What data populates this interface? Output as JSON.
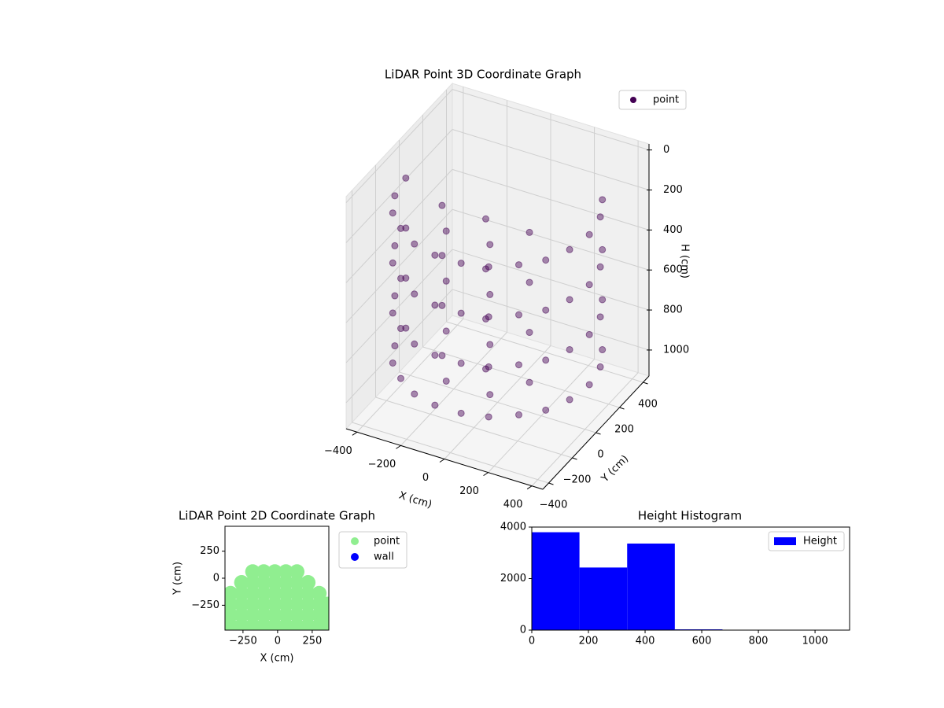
{
  "chart_data": [
    {
      "type": "scatter3d",
      "title": "LiDAR Point 3D Coordinate Graph",
      "x_label": "X (cm)",
      "y_label": "Y (cm)",
      "z_label": "H (cm)",
      "xlim": [
        -450,
        450
      ],
      "ylim": [
        -450,
        450
      ],
      "zlim": [
        1130,
        -30
      ],
      "xticks": [
        {
          "value": -400,
          "label": "−400"
        },
        {
          "value": -200,
          "label": "−200"
        },
        0,
        200,
        400
      ],
      "yticks": [
        {
          "value": -400,
          "label": "−400"
        },
        {
          "value": -200,
          "label": "−200"
        },
        0,
        200,
        400
      ],
      "zticks": [
        0,
        200,
        400,
        600,
        800,
        1000
      ],
      "grid": true,
      "legend": "upper right",
      "series": [
        {
          "name": "point",
          "color": "#440154",
          "x": [
            -420,
            -420,
            -420,
            -420,
            -400,
            -400,
            -400,
            -400,
            -350,
            -350,
            -350,
            -350,
            -270,
            -270,
            -270,
            -270,
            -170,
            -170,
            -170,
            -170,
            -60,
            -60,
            -60,
            -60,
            60,
            60,
            60,
            60,
            170,
            170,
            170,
            170,
            270,
            270,
            270,
            270,
            350,
            350,
            350,
            350,
            400,
            400,
            400,
            400,
            420,
            420,
            420,
            420,
            400,
            400,
            400,
            400,
            350,
            350,
            350,
            350,
            -200,
            -200,
            -200,
            -200,
            0,
            0,
            0,
            0,
            200,
            200,
            200,
            200,
            -100,
            -100,
            -100,
            -100,
            100,
            100,
            100,
            100
          ],
          "y": [
            0,
            0,
            0,
            0,
            -130,
            -130,
            -130,
            -130,
            -240,
            -240,
            -240,
            -240,
            -320,
            -320,
            -320,
            -320,
            -390,
            -390,
            -390,
            -390,
            -420,
            -420,
            -420,
            -420,
            -420,
            -420,
            -420,
            -420,
            -390,
            -390,
            -390,
            -390,
            -320,
            -320,
            -320,
            -320,
            -240,
            -240,
            -240,
            -240,
            -130,
            -130,
            -130,
            -130,
            0,
            0,
            0,
            0,
            130,
            130,
            130,
            130,
            240,
            240,
            240,
            240,
            -100,
            -100,
            -100,
            -100,
            -100,
            -100,
            -100,
            -100,
            -100,
            -100,
            -100,
            -100,
            -250,
            -250,
            -250,
            -250,
            -250,
            -250,
            -250,
            -250
          ],
          "z": [
            150,
            400,
            650,
            900,
            150,
            400,
            650,
            900,
            150,
            400,
            650,
            900,
            150,
            400,
            650,
            900,
            150,
            400,
            650,
            900,
            150,
            400,
            650,
            900,
            150,
            400,
            650,
            900,
            150,
            400,
            650,
            900,
            150,
            400,
            650,
            900,
            150,
            400,
            650,
            900,
            150,
            400,
            650,
            900,
            150,
            400,
            650,
            900,
            150,
            400,
            650,
            900,
            150,
            400,
            650,
            900,
            150,
            400,
            650,
            900,
            150,
            400,
            650,
            900,
            150,
            400,
            650,
            900,
            150,
            400,
            650,
            900,
            150,
            400,
            650,
            900
          ]
        }
      ]
    },
    {
      "type": "scatter",
      "title": "LiDAR Point 2D Coordinate Graph",
      "x_label": "X (cm)",
      "y_label": "Y (cm)",
      "xlim": [
        -380,
        370
      ],
      "ylim": [
        -480,
        480
      ],
      "xticks": [
        {
          "value": -250,
          "label": "−250"
        },
        0,
        250
      ],
      "yticks": [
        {
          "value": -250,
          "label": "−250"
        },
        0,
        250
      ],
      "legend": "outside right",
      "series": [
        {
          "name": "point",
          "color": "#90ee90",
          "x": [
            -180,
            -100,
            -20,
            60,
            140,
            -260,
            -180,
            -100,
            -20,
            60,
            140,
            220,
            -340,
            -260,
            -180,
            -100,
            -20,
            60,
            140,
            220,
            300,
            -340,
            -260,
            -180,
            -100,
            -20,
            60,
            140,
            220,
            300,
            360,
            -340,
            -260,
            -180,
            -100,
            -20,
            60,
            140,
            220,
            300,
            360,
            -340,
            -260,
            -180,
            -100,
            -20,
            60,
            140,
            220,
            300,
            360
          ],
          "y": [
            60,
            60,
            60,
            60,
            60,
            -40,
            -40,
            -40,
            -40,
            -40,
            -40,
            -40,
            -140,
            -140,
            -140,
            -140,
            -140,
            -140,
            -140,
            -140,
            -140,
            -240,
            -240,
            -240,
            -240,
            -240,
            -240,
            -240,
            -240,
            -240,
            -240,
            -340,
            -340,
            -340,
            -340,
            -340,
            -340,
            -340,
            -340,
            -340,
            -340,
            -440,
            -440,
            -440,
            -440,
            -440,
            -440,
            -440,
            -440,
            -440,
            -440
          ]
        },
        {
          "name": "wall",
          "color": "#0000ff",
          "x": [],
          "y": []
        }
      ]
    },
    {
      "type": "histogram",
      "title": "Height Histogram",
      "name": "Height",
      "color": "#0000ff",
      "bins": [
        0,
        168.3,
        336.7,
        505,
        673.3,
        841.7,
        1010
      ],
      "values": [
        3800,
        2430,
        3360,
        30,
        2,
        2
      ],
      "xlim": [
        0,
        1122
      ],
      "ylim": [
        0,
        4000
      ],
      "xticks": [
        0,
        200,
        400,
        600,
        800,
        1000
      ],
      "yticks": [
        0,
        2000,
        4000
      ],
      "legend": "upper right"
    }
  ]
}
